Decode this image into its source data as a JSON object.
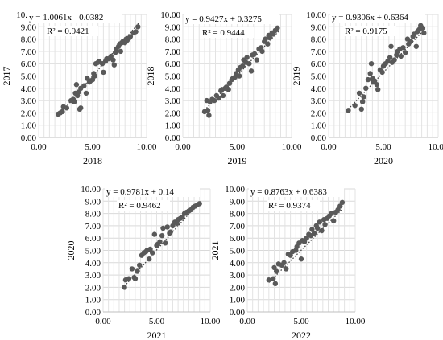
{
  "chart_data": [
    {
      "type": "scatter",
      "xlabel": "2018",
      "ylabel": "2017",
      "xlim": [
        0,
        10
      ],
      "ylim": [
        0,
        10
      ],
      "xticks": [
        "0.00",
        "5.00",
        "10.00"
      ],
      "yticks": [
        "0.00",
        "1.00",
        "2.00",
        "3.00",
        "4.00",
        "5.00",
        "6.00",
        "7.00",
        "8.00",
        "9.00",
        "10.00"
      ],
      "equation": "y = 1.0061x - 0.0382",
      "r_squared": "R² = 0.9421",
      "trendline": {
        "slope": 1.0061,
        "intercept": -0.0382,
        "x_range": [
          1.8,
          9.3
        ]
      },
      "x": [
        1.8,
        2.0,
        2.2,
        2.3,
        2.6,
        3.0,
        3.2,
        3.3,
        3.4,
        3.5,
        3.6,
        3.7,
        3.8,
        3.9,
        3.9,
        4.2,
        4.4,
        4.5,
        4.7,
        4.8,
        5.0,
        5.1,
        5.2,
        5.3,
        5.5,
        5.6,
        5.9,
        6.0,
        6.2,
        6.3,
        6.5,
        6.7,
        6.9,
        7.0,
        7.1,
        7.2,
        7.4,
        7.5,
        7.6,
        7.7,
        7.8,
        8.0,
        8.1,
        8.2,
        8.4,
        8.5,
        8.8,
        9.0,
        9.2
      ],
      "y": [
        1.9,
        2.0,
        2.1,
        2.5,
        2.4,
        3.0,
        3.1,
        2.9,
        3.6,
        4.3,
        3.4,
        3.7,
        2.3,
        2.4,
        4.0,
        4.2,
        3.6,
        4.8,
        4.5,
        4.6,
        4.7,
        5.2,
        5.0,
        6.0,
        6.1,
        6.2,
        6.0,
        5.3,
        6.2,
        6.4,
        6.4,
        6.6,
        6.3,
        5.9,
        6.9,
        7.2,
        7.4,
        7.6,
        7.0,
        7.7,
        7.8,
        7.7,
        8.0,
        7.9,
        8.1,
        8.2,
        8.5,
        8.6,
        9.0
      ]
    },
    {
      "type": "scatter",
      "xlabel": "2019",
      "ylabel": "2018",
      "xlim": [
        0,
        10
      ],
      "ylim": [
        0,
        10
      ],
      "xticks": [
        "0.00",
        "5.00",
        "10.00"
      ],
      "yticks": [
        "0.00",
        "1.00",
        "2.00",
        "3.00",
        "4.00",
        "5.00",
        "6.00",
        "7.00",
        "8.00",
        "9.00",
        "10.00"
      ],
      "equation": "y = 0.9427x + 0.3275",
      "r_squared": "R² = 0.9444",
      "trendline": {
        "slope": 0.9427,
        "intercept": 0.3275,
        "x_range": [
          2.0,
          8.8
        ]
      },
      "x": [
        2.0,
        2.2,
        2.3,
        2.4,
        2.5,
        2.7,
        2.9,
        3.1,
        3.3,
        3.5,
        3.6,
        3.7,
        3.9,
        4.0,
        4.2,
        4.3,
        4.5,
        4.6,
        4.8,
        4.9,
        5.1,
        5.2,
        5.3,
        5.5,
        5.6,
        5.8,
        5.9,
        6.1,
        6.3,
        6.4,
        6.6,
        6.8,
        7.0,
        7.2,
        7.3,
        7.5,
        7.6,
        7.8,
        7.9,
        8.0,
        8.2,
        8.3,
        8.5,
        8.7
      ],
      "y": [
        2.1,
        3.0,
        2.2,
        1.8,
        2.9,
        3.1,
        3.0,
        3.4,
        3.2,
        3.8,
        3.9,
        3.4,
        4.0,
        4.1,
        3.9,
        4.4,
        4.7,
        4.8,
        4.9,
        5.2,
        5.5,
        5.0,
        5.7,
        5.8,
        6.3,
        6.1,
        6.5,
        6.0,
        5.4,
        6.7,
        6.8,
        6.3,
        7.2,
        7.3,
        7.0,
        7.8,
        8.0,
        7.6,
        8.3,
        8.1,
        8.5,
        8.4,
        8.7,
        8.9
      ]
    },
    {
      "type": "scatter",
      "xlabel": "2020",
      "ylabel": "2019",
      "xlim": [
        0,
        10
      ],
      "ylim": [
        0,
        10
      ],
      "xticks": [
        "0.00",
        "5.00",
        "10.00"
      ],
      "yticks": [
        "0.00",
        "1.00",
        "2.00",
        "3.00",
        "4.00",
        "5.00",
        "6.00",
        "7.00",
        "8.00",
        "9.00",
        "10.00"
      ],
      "equation": "y = 0.9306x + 0.6364",
      "r_squared": "R² = 0.9175",
      "trendline": {
        "slope": 0.9306,
        "intercept": 0.6364,
        "x_range": [
          1.8,
          8.8
        ]
      },
      "x": [
        1.8,
        2.4,
        2.8,
        3.0,
        3.1,
        3.2,
        3.4,
        3.6,
        3.8,
        3.9,
        4.0,
        4.1,
        4.2,
        4.4,
        4.5,
        4.7,
        4.9,
        5.0,
        5.2,
        5.4,
        5.6,
        5.7,
        5.8,
        6.0,
        6.2,
        6.3,
        6.5,
        6.6,
        6.8,
        7.0,
        7.2,
        7.3,
        7.5,
        7.7,
        7.8,
        8.0,
        8.1,
        8.2,
        8.3,
        8.4,
        8.6,
        8.7
      ],
      "y": [
        2.2,
        2.6,
        3.6,
        2.3,
        2.9,
        3.3,
        4.0,
        4.7,
        5.2,
        6.0,
        4.8,
        4.5,
        4.6,
        4.3,
        3.9,
        5.5,
        5.3,
        5.8,
        6.0,
        6.2,
        6.5,
        7.4,
        6.1,
        6.3,
        6.7,
        7.0,
        7.2,
        6.6,
        7.3,
        6.9,
        8.0,
        7.6,
        7.8,
        8.2,
        8.4,
        7.4,
        8.6,
        8.7,
        8.8,
        9.1,
        8.9,
        8.5
      ]
    },
    {
      "type": "scatter",
      "xlabel": "2021",
      "ylabel": "2020",
      "xlim": [
        0,
        10
      ],
      "ylim": [
        0,
        10
      ],
      "xticks": [
        "0.00",
        "5.00",
        "10.00"
      ],
      "yticks": [
        "0.00",
        "1.00",
        "2.00",
        "3.00",
        "4.00",
        "5.00",
        "6.00",
        "7.00",
        "8.00",
        "9.00",
        "10.00"
      ],
      "equation": "y = 0.9781x + 0.14",
      "r_squared": "R² = 0.9462",
      "trendline": {
        "slope": 0.9781,
        "intercept": 0.14,
        "x_range": [
          2.0,
          9.0
        ]
      },
      "x": [
        2.0,
        2.1,
        2.4,
        2.7,
        2.9,
        3.0,
        3.2,
        3.4,
        3.6,
        3.8,
        4.0,
        4.1,
        4.3,
        4.4,
        4.6,
        4.8,
        5.0,
        5.1,
        5.3,
        5.5,
        5.6,
        5.8,
        6.0,
        6.2,
        6.3,
        6.5,
        6.7,
        6.9,
        7.0,
        7.2,
        7.4,
        7.6,
        7.8,
        8.0,
        8.2,
        8.4,
        8.6,
        8.8,
        9.0
      ],
      "y": [
        2.0,
        2.6,
        2.7,
        3.5,
        2.8,
        2.7,
        3.3,
        3.8,
        4.6,
        4.8,
        4.9,
        5.0,
        4.3,
        5.1,
        4.8,
        6.3,
        5.4,
        5.5,
        5.7,
        6.2,
        6.8,
        5.6,
        6.9,
        6.4,
        6.5,
        7.0,
        7.3,
        7.2,
        7.5,
        7.6,
        7.7,
        8.0,
        8.1,
        8.2,
        8.3,
        8.5,
        8.6,
        8.7,
        8.8
      ]
    },
    {
      "type": "scatter",
      "xlabel": "2022",
      "ylabel": "2021",
      "xlim": [
        0,
        10
      ],
      "ylim": [
        0,
        10
      ],
      "xticks": [
        "0.00",
        "5.00",
        "10.00"
      ],
      "yticks": [
        "0.00",
        "1.00",
        "2.00",
        "3.00",
        "4.00",
        "5.00",
        "6.00",
        "7.00",
        "8.00",
        "9.00",
        "10.00"
      ],
      "equation": "y = 0.8763x + 0.6383",
      "r_squared": "R² = 0.9374",
      "trendline": {
        "slope": 0.8763,
        "intercept": 0.6383,
        "x_range": [
          2.0,
          8.8
        ]
      },
      "x": [
        2.0,
        2.4,
        2.5,
        2.6,
        2.7,
        2.9,
        3.2,
        3.4,
        3.6,
        3.8,
        4.0,
        4.2,
        4.5,
        4.6,
        4.8,
        5.0,
        5.1,
        5.3,
        5.5,
        5.7,
        5.9,
        6.0,
        6.2,
        6.4,
        6.5,
        6.7,
        6.9,
        7.1,
        7.2,
        7.4,
        7.6,
        7.8,
        8.0,
        8.2,
        8.4,
        8.6,
        8.8
      ],
      "y": [
        2.6,
        2.7,
        3.6,
        2.3,
        3.3,
        3.9,
        3.8,
        4.0,
        3.5,
        4.7,
        4.6,
        4.9,
        5.0,
        5.3,
        5.6,
        4.3,
        5.8,
        5.7,
        6.0,
        6.3,
        6.2,
        6.7,
        6.4,
        7.0,
        6.8,
        7.3,
        6.6,
        7.5,
        7.1,
        7.6,
        7.8,
        8.0,
        7.4,
        8.1,
        8.3,
        8.6,
        8.9
      ]
    }
  ]
}
